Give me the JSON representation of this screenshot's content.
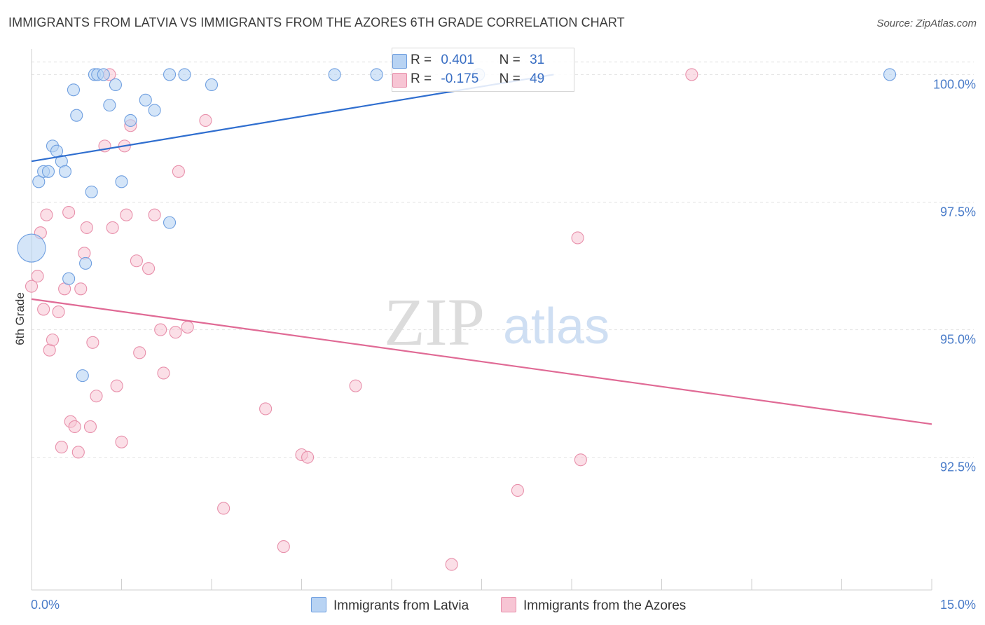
{
  "title": "IMMIGRANTS FROM LATVIA VS IMMIGRANTS FROM THE AZORES 6TH GRADE CORRELATION CHART",
  "source": "Source: ZipAtlas.com",
  "watermark": {
    "zip": "ZIP",
    "atlas": "atlas"
  },
  "legend": {
    "r_label": "R =",
    "n_label": "N =",
    "rows": [
      {
        "r": "0.401",
        "n": "31"
      },
      {
        "r": "-0.175",
        "n": "49"
      }
    ]
  },
  "bottom_legend": [
    "Immigrants from Latvia",
    "Immigrants from the Azores"
  ],
  "colors": {
    "latvia_fill": "#b8d3f3",
    "latvia_stroke": "#6f9fe0",
    "latvia_line": "#2f6ecf",
    "azores_fill": "#f7c5d4",
    "azores_stroke": "#e890ab",
    "azores_line": "#e06a95",
    "tick_text": "#4a7cc9"
  },
  "chart_data": {
    "type": "scatter",
    "title": "IMMIGRANTS FROM LATVIA VS IMMIGRANTS FROM THE AZORES 6TH GRADE CORRELATION CHART",
    "xlabel": "",
    "ylabel": "6th Grade",
    "xlim": [
      0,
      15
    ],
    "ylim": [
      89.9,
      100.5
    ],
    "x_tick_labels": [
      "0.0%",
      "15.0%"
    ],
    "y_ticks": [
      92.5,
      95.0,
      97.5,
      100.0
    ],
    "y_tick_labels": [
      "92.5%",
      "95.0%",
      "97.5%",
      "100.0%"
    ],
    "series": [
      {
        "name": "Immigrants from Latvia",
        "r": 0.401,
        "n": 31,
        "trend": {
          "x": [
            0,
            8.7
          ],
          "y": [
            98.3,
            100.0
          ]
        },
        "points": [
          {
            "x": 0.0,
            "y": 96.6,
            "size": "large"
          },
          {
            "x": 0.12,
            "y": 97.9
          },
          {
            "x": 0.2,
            "y": 98.1
          },
          {
            "x": 0.28,
            "y": 98.1
          },
          {
            "x": 0.35,
            "y": 98.6
          },
          {
            "x": 0.42,
            "y": 98.5
          },
          {
            "x": 0.5,
            "y": 98.3
          },
          {
            "x": 0.56,
            "y": 98.1
          },
          {
            "x": 0.62,
            "y": 96.0
          },
          {
            "x": 0.7,
            "y": 99.7
          },
          {
            "x": 0.75,
            "y": 99.2
          },
          {
            "x": 0.85,
            "y": 94.1
          },
          {
            "x": 0.9,
            "y": 96.3
          },
          {
            "x": 1.0,
            "y": 97.7
          },
          {
            "x": 1.05,
            "y": 100.0
          },
          {
            "x": 1.1,
            "y": 100.0
          },
          {
            "x": 1.2,
            "y": 100.0
          },
          {
            "x": 1.3,
            "y": 99.4
          },
          {
            "x": 1.4,
            "y": 99.8
          },
          {
            "x": 1.5,
            "y": 97.9
          },
          {
            "x": 1.65,
            "y": 99.1
          },
          {
            "x": 1.9,
            "y": 99.5
          },
          {
            "x": 2.05,
            "y": 99.3
          },
          {
            "x": 2.3,
            "y": 100.0
          },
          {
            "x": 2.3,
            "y": 97.1
          },
          {
            "x": 2.55,
            "y": 100.0
          },
          {
            "x": 3.0,
            "y": 99.8
          },
          {
            "x": 5.05,
            "y": 100.0
          },
          {
            "x": 5.75,
            "y": 100.0
          },
          {
            "x": 7.45,
            "y": 100.0
          },
          {
            "x": 14.3,
            "y": 100.0
          }
        ]
      },
      {
        "name": "Immigrants from the Azores",
        "r": -0.175,
        "n": 49,
        "trend": {
          "x": [
            0,
            15
          ],
          "y": [
            95.6,
            93.15
          ]
        },
        "points": [
          {
            "x": 0.0,
            "y": 95.85
          },
          {
            "x": 0.1,
            "y": 96.05
          },
          {
            "x": 0.15,
            "y": 96.9
          },
          {
            "x": 0.2,
            "y": 95.4
          },
          {
            "x": 0.25,
            "y": 97.25
          },
          {
            "x": 0.3,
            "y": 94.6
          },
          {
            "x": 0.35,
            "y": 94.8
          },
          {
            "x": 0.45,
            "y": 95.35
          },
          {
            "x": 0.5,
            "y": 92.7
          },
          {
            "x": 0.55,
            "y": 95.8
          },
          {
            "x": 0.62,
            "y": 97.3
          },
          {
            "x": 0.65,
            "y": 93.2
          },
          {
            "x": 0.72,
            "y": 93.1
          },
          {
            "x": 0.78,
            "y": 92.6
          },
          {
            "x": 0.82,
            "y": 95.8
          },
          {
            "x": 0.88,
            "y": 96.5
          },
          {
            "x": 0.92,
            "y": 97.0
          },
          {
            "x": 0.98,
            "y": 93.1
          },
          {
            "x": 1.02,
            "y": 94.75
          },
          {
            "x": 1.08,
            "y": 93.7
          },
          {
            "x": 1.22,
            "y": 98.6
          },
          {
            "x": 1.3,
            "y": 100.0
          },
          {
            "x": 1.35,
            "y": 97.0
          },
          {
            "x": 1.42,
            "y": 93.9
          },
          {
            "x": 1.5,
            "y": 92.8
          },
          {
            "x": 1.55,
            "y": 98.6
          },
          {
            "x": 1.58,
            "y": 97.25
          },
          {
            "x": 1.65,
            "y": 99.0
          },
          {
            "x": 1.75,
            "y": 96.35
          },
          {
            "x": 1.8,
            "y": 94.55
          },
          {
            "x": 1.95,
            "y": 96.2
          },
          {
            "x": 2.05,
            "y": 97.25
          },
          {
            "x": 2.15,
            "y": 95.0
          },
          {
            "x": 2.2,
            "y": 94.15
          },
          {
            "x": 2.4,
            "y": 94.95
          },
          {
            "x": 2.45,
            "y": 98.1
          },
          {
            "x": 2.6,
            "y": 95.05
          },
          {
            "x": 2.9,
            "y": 99.1
          },
          {
            "x": 3.2,
            "y": 91.5
          },
          {
            "x": 3.9,
            "y": 93.45
          },
          {
            "x": 4.2,
            "y": 90.75
          },
          {
            "x": 4.5,
            "y": 92.55
          },
          {
            "x": 4.6,
            "y": 92.5
          },
          {
            "x": 5.4,
            "y": 93.9
          },
          {
            "x": 7.0,
            "y": 90.4
          },
          {
            "x": 8.1,
            "y": 91.85
          },
          {
            "x": 9.1,
            "y": 96.8
          },
          {
            "x": 9.15,
            "y": 92.45
          },
          {
            "x": 11.0,
            "y": 100.0
          }
        ]
      }
    ]
  }
}
